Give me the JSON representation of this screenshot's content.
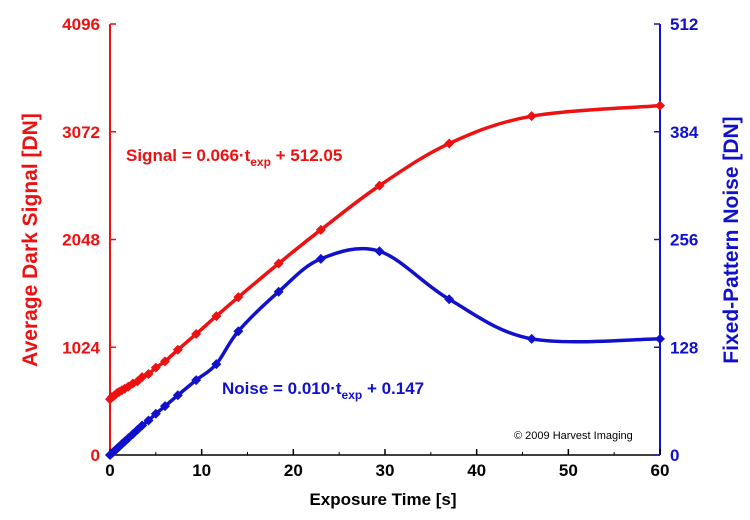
{
  "chart_data": {
    "type": "line",
    "xlabel": "Exposure Time [s]",
    "ylabel_left": "Average Dark Signal [DN]",
    "ylabel_right": "Fixed-Pattern Noise [DN]",
    "xlim": [
      0,
      60
    ],
    "ylim_left": [
      0,
      4096
    ],
    "ylim_right": [
      0,
      512
    ],
    "x_ticks": [
      0,
      10,
      20,
      30,
      40,
      50,
      60
    ],
    "y_ticks_left": [
      0,
      1024,
      2048,
      3072,
      4096
    ],
    "y_ticks_right": [
      0,
      128,
      256,
      384,
      512
    ],
    "grid": false,
    "colors": {
      "signal": "#ee1111",
      "noise": "#1111cc"
    },
    "series": [
      {
        "axis": "left",
        "x": [
          0,
          0.2,
          0.4,
          0.6,
          0.8,
          1.0,
          1.3,
          1.6,
          2.0,
          2.5,
          3.0,
          3.5,
          4.2,
          5.0,
          6.0,
          7.4,
          9.4,
          11.6,
          14.0,
          18.4,
          23.0,
          29.4,
          37.0,
          46.0,
          60.0
        ],
        "y": [
          530,
          550,
          560,
          575,
          590,
          600,
          615,
          630,
          650,
          680,
          700,
          740,
          770,
          830,
          890,
          1000,
          1150,
          1320,
          1500,
          1820,
          2140,
          2560,
          2960,
          3220,
          3320
        ]
      },
      {
        "axis": "right",
        "x": [
          0,
          0.2,
          0.4,
          0.6,
          0.8,
          1.0,
          1.3,
          1.6,
          2.0,
          2.5,
          3.0,
          3.5,
          4.2,
          5.0,
          6.0,
          7.4,
          9.4,
          11.6,
          14.0,
          18.4,
          23.0,
          29.4,
          37.0,
          46.0,
          60.0
        ],
        "y": [
          0,
          2,
          4,
          6,
          8,
          10,
          13,
          16,
          20,
          25,
          30,
          35,
          41,
          49,
          58,
          71,
          89,
          108,
          147,
          194,
          233,
          242,
          185,
          138,
          138
        ]
      }
    ],
    "annotations": {
      "signal_eq": {
        "pre": "Signal = 0.066·t",
        "sub": "exp",
        "post": " + 512.05"
      },
      "noise_eq": {
        "pre": "Noise = 0.010·t",
        "sub": "exp",
        "post": " + 0.147"
      },
      "copyright": "© 2009 Harvest Imaging"
    }
  }
}
